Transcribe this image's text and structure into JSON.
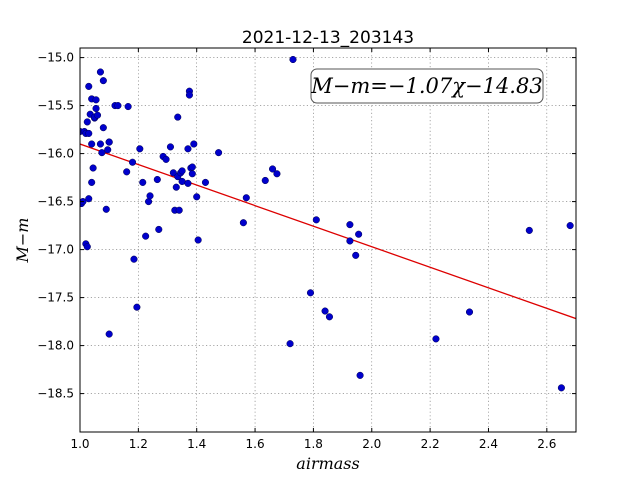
{
  "chart_data": {
    "type": "scatter",
    "title": "2021-12-13_203143",
    "xlabel": "airmass",
    "ylabel": "M−m",
    "xlim": [
      1.0,
      2.7
    ],
    "ylim": [
      -14.9,
      -18.9
    ],
    "y_inverted": true,
    "grid": true,
    "x_ticks": [
      1.0,
      1.2,
      1.4,
      1.6,
      1.8,
      2.0,
      2.2,
      2.4,
      2.6
    ],
    "x_tick_labels": [
      "1.0",
      "1.2",
      "1.4",
      "1.6",
      "1.8",
      "2.0",
      "2.2",
      "2.4",
      "2.6"
    ],
    "y_ticks": [
      -15.0,
      -15.5,
      -16.0,
      -16.5,
      -17.0,
      -17.5,
      -18.0,
      -18.5
    ],
    "y_tick_labels": [
      "−15.0",
      "−15.5",
      "−16.0",
      "−16.5",
      "−17.0",
      "−17.5",
      "−18.0",
      "−18.5"
    ],
    "annotation": "M−m=−1.07χ−14.83",
    "annotation_placement": "top-right",
    "point_color": "#0000cc",
    "fit_line_color": "#dd0000",
    "fit": {
      "slope": -1.07,
      "intercept": -14.83,
      "x_range": [
        1.0,
        2.7
      ]
    },
    "series": [
      {
        "x": [
          1.0,
          1.005,
          1.01,
          1.015,
          1.02,
          1.02,
          1.025,
          1.025,
          1.03,
          1.03,
          1.03,
          1.035,
          1.04,
          1.04,
          1.04,
          1.045,
          1.05,
          1.05,
          1.055,
          1.055,
          1.06,
          1.07,
          1.07,
          1.075,
          1.08,
          1.08,
          1.09,
          1.095,
          1.1,
          1.1,
          1.1,
          1.12,
          1.13,
          1.16,
          1.165,
          1.18,
          1.185,
          1.195,
          1.205,
          1.215,
          1.225,
          1.235,
          1.24,
          1.265,
          1.27,
          1.285,
          1.295,
          1.31,
          1.32,
          1.325,
          1.33,
          1.335,
          1.335,
          1.34,
          1.345,
          1.35,
          1.35,
          1.37,
          1.37,
          1.375,
          1.375,
          1.38,
          1.385,
          1.385,
          1.39,
          1.4,
          1.405,
          1.43,
          1.475,
          1.56,
          1.57,
          1.635,
          1.66,
          1.675,
          1.72,
          1.73,
          1.79,
          1.81,
          1.84,
          1.855,
          1.925,
          1.925,
          1.945,
          1.955,
          1.96,
          2.22,
          2.335,
          2.54,
          2.65,
          2.68
        ],
        "y": [
          -15.77,
          -16.52,
          -16.5,
          -15.77,
          -15.79,
          -16.94,
          -16.97,
          -15.67,
          -15.3,
          -15.79,
          -16.47,
          -15.59,
          -15.43,
          -15.9,
          -16.3,
          -16.15,
          -15.63,
          -15.62,
          -15.44,
          -15.53,
          -15.6,
          -15.9,
          -15.15,
          -15.99,
          -15.24,
          -15.73,
          -16.58,
          -15.96,
          -15.88,
          -15.88,
          -17.88,
          -15.5,
          -15.5,
          -16.19,
          -15.51,
          -16.09,
          -17.1,
          -17.6,
          -15.95,
          -16.3,
          -16.86,
          -16.5,
          -16.44,
          -16.27,
          -16.79,
          -16.03,
          -16.06,
          -15.93,
          -16.2,
          -16.59,
          -16.35,
          -15.62,
          -16.24,
          -16.59,
          -16.2,
          -16.29,
          -16.18,
          -15.95,
          -16.31,
          -15.35,
          -15.39,
          -16.15,
          -16.14,
          -16.21,
          -15.9,
          -16.45,
          -16.9,
          -16.3,
          -15.99,
          -16.72,
          -16.46,
          -16.28,
          -16.16,
          -16.21,
          -17.98,
          -15.02,
          -17.45,
          -16.69,
          -17.64,
          -17.7,
          -16.74,
          -16.91,
          -17.06,
          -16.84,
          -18.31,
          -17.93,
          -17.65,
          -16.8,
          -18.44,
          -16.75
        ]
      }
    ]
  }
}
